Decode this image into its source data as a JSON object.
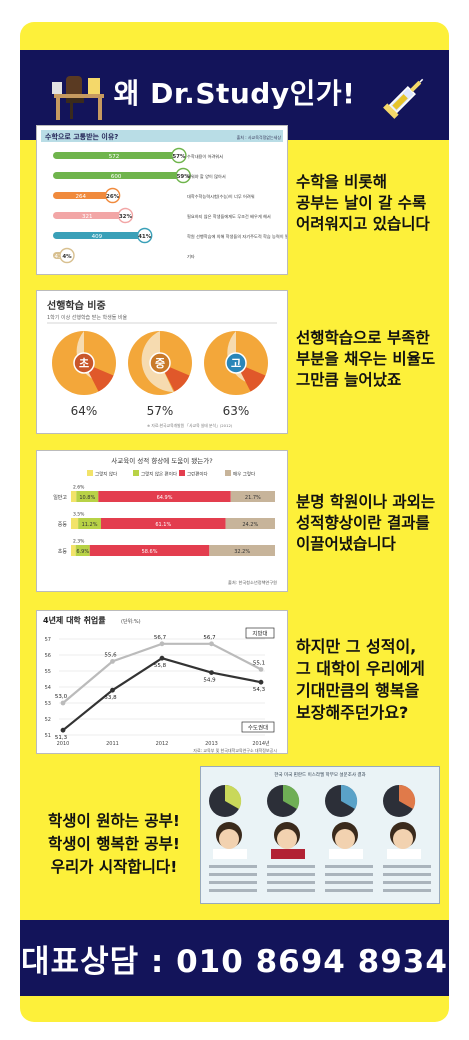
{
  "header": {
    "title": "왜 Dr.Study인가!"
  },
  "sections": [
    {
      "caption": [
        "수학을 비롯해",
        "공부는 날이 갈 수록",
        "어려워지고 있습니다"
      ]
    },
    {
      "caption": [
        "선행학습으로 부족한",
        "부분을 채우는 비율도",
        "그만큼 늘어났죠"
      ]
    },
    {
      "caption": [
        "분명 학원이나 과외는",
        "성적향상이란 결과를",
        "이끌어냈습니다"
      ]
    },
    {
      "caption": [
        "하지만 그 성적이,",
        "그 대학이 우리에게",
        "기대만큼의 행복을",
        "보장해주던가요?"
      ]
    }
  ],
  "closing": {
    "lines": [
      "학생이 원하는 공부!",
      "학생이 행복한 공부!",
      "우리가 시작합니다!"
    ]
  },
  "footer": {
    "title": "대표상담 : 010 8694 8934"
  },
  "chart1": {
    "title": "수학으로 고통받는 이유?",
    "source": "출처 : 사교육걱정없는세상",
    "bars": [
      {
        "count": "572",
        "pct": "57%",
        "label": "수학내용이 어려워서",
        "color": "#6fb44c",
        "frac": 0.57
      },
      {
        "count": "600",
        "pct": "59%",
        "label": "배워야 할 양이 많아서",
        "color": "#6fb44c",
        "frac": 0.59
      },
      {
        "count": "264",
        "pct": "26%",
        "label": "대학수학능력시험(수능)이 너무 어려워",
        "color": "#f08a3c",
        "frac": 0.26
      },
      {
        "count": "321",
        "pct": "32%",
        "label": "필요하지 않은 학생들에게도 무조건 배우게 해서",
        "color": "#f2a6a6",
        "frac": 0.32
      },
      {
        "count": "409",
        "pct": "41%",
        "label": "학원 선행학습에 의해 학생들의 자기주도적 학습 능력이 떨어져서",
        "color": "#3aa0b8",
        "frac": 0.41
      },
      {
        "count": "41",
        "pct": "4%",
        "label": "기타",
        "color": "#d8c090",
        "frac": 0.04
      }
    ]
  },
  "chart2": {
    "title": "선행학습 비중",
    "subtitle": "1학기 이상 선행학습 받는 학생들 비율",
    "pies": [
      {
        "label": "초",
        "pct": "64%",
        "frac": 0.64,
        "badge": "#c9562a"
      },
      {
        "label": "중",
        "pct": "57%",
        "frac": 0.57,
        "badge": "#c97a2a"
      },
      {
        "label": "고",
        "pct": "63%",
        "frac": 0.63,
        "badge": "#2a86b8"
      }
    ],
    "note": "※ 자료:한국교육개발원 「사교육 실태 분석」(2012)"
  },
  "chart3": {
    "title": "사교육이 성적 향상에 도움이 됐는가?",
    "legend": [
      "그렇지 않다",
      "그렇지 않은 편이다",
      "그런편이다",
      "매우 그렇다"
    ],
    "legend_colors": [
      "#f2e36a",
      "#b8d246",
      "#e33d4e",
      "#c7b49a"
    ],
    "rows": [
      {
        "name": "일반고",
        "small": "2.6%",
        "values": [
          2.6,
          10.8,
          64.9,
          21.7
        ],
        "labels": [
          "",
          "10.8%",
          "64.9%",
          "21.7%"
        ]
      },
      {
        "name": "중등",
        "small": "3.5%",
        "values": [
          3.5,
          11.2,
          61.1,
          24.2
        ],
        "labels": [
          "",
          "11.2%",
          "61.1%",
          "24.2%"
        ]
      },
      {
        "name": "초등",
        "small": "2.3%",
        "values": [
          2.3,
          6.9,
          58.6,
          32.2
        ],
        "labels": [
          "",
          "6.9%",
          "58.6%",
          "32.2%"
        ]
      }
    ],
    "source": "출처: 한국청소년정책연구원"
  },
  "chart4": {
    "title": "4년제 대학 취업률",
    "unit": "(단위:%)",
    "years": [
      "2010",
      "2011",
      "2012",
      "2013",
      "2014년"
    ],
    "ytick": [
      "51",
      "52",
      "53",
      "54",
      "55",
      "56",
      "57"
    ],
    "series": [
      {
        "name": "지방대",
        "values": [
          53.0,
          55.6,
          56.7,
          56.7,
          55.1
        ],
        "labels": [
          "53,0",
          "55,6",
          "56,7",
          "56,7",
          "55,1"
        ]
      },
      {
        "name": "수도권대",
        "values": [
          51.3,
          53.8,
          55.8,
          54.9,
          54.3
        ],
        "labels": [
          "51,3",
          "53,8",
          "55,8",
          "54,9",
          "54,3"
        ]
      }
    ],
    "source": "자료: 교육부 및 한국대학교육연구소 대학정보공시"
  },
  "chart5": {
    "title": "한국 미국 핀란드 이스라엘 학부모 설문조사 결과"
  }
}
